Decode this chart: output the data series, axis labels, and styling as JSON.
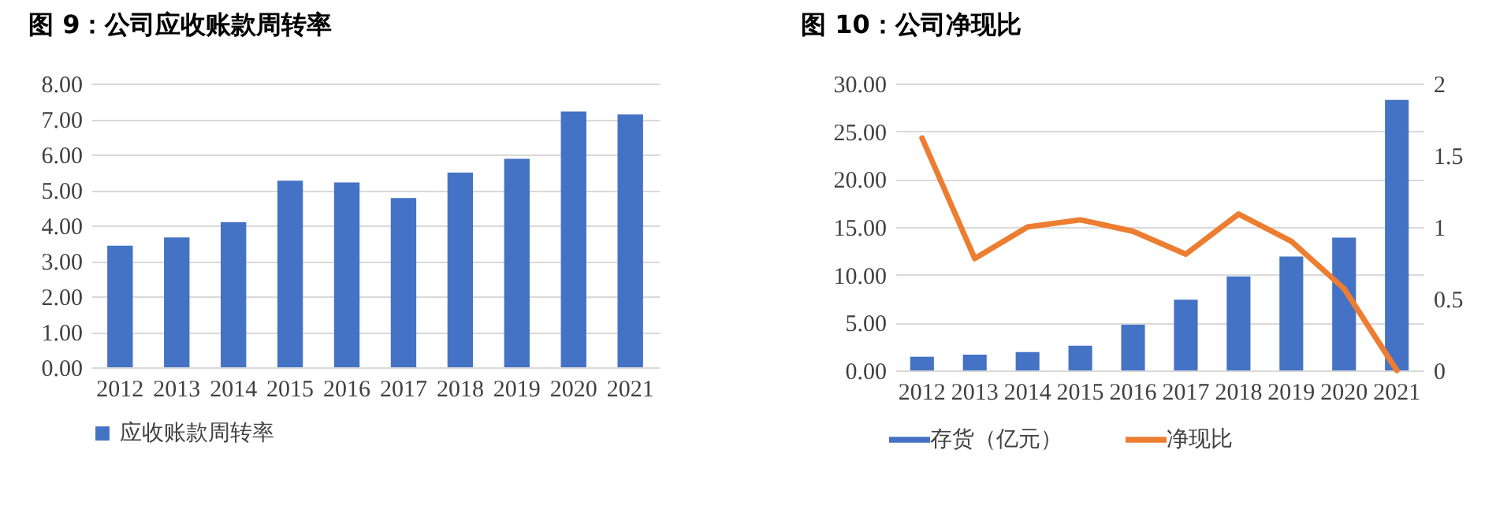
{
  "chart_data": [
    {
      "type": "bar",
      "title": "图 9：公司应收账款周转率",
      "categories": [
        "2012",
        "2013",
        "2014",
        "2015",
        "2016",
        "2017",
        "2018",
        "2019",
        "2020",
        "2021"
      ],
      "series": [
        {
          "name": "应收账款周转率",
          "color": "#4472c4",
          "values": [
            3.43,
            3.66,
            4.09,
            5.26,
            5.21,
            4.77,
            5.49,
            5.88,
            7.21,
            7.13
          ]
        }
      ],
      "ylim": [
        0,
        8
      ],
      "yticks": [
        {
          "value": 0,
          "label": "0.00"
        },
        {
          "value": 1,
          "label": "1.00"
        },
        {
          "value": 2,
          "label": "2.00"
        },
        {
          "value": 3,
          "label": "3.00"
        },
        {
          "value": 4,
          "label": "4.00"
        },
        {
          "value": 5,
          "label": "5.00"
        },
        {
          "value": 6,
          "label": "6.00"
        },
        {
          "value": 7,
          "label": "7.00"
        },
        {
          "value": 8,
          "label": "8.00"
        }
      ],
      "grid": "y",
      "legend": "bottom"
    },
    {
      "type": "bar",
      "title": "图 10：公司净现比",
      "categories": [
        "2012",
        "2013",
        "2014",
        "2015",
        "2016",
        "2017",
        "2018",
        "2019",
        "2020",
        "2021"
      ],
      "series": [
        {
          "name": "存货（亿元）",
          "color": "#4472c4",
          "values": [
            1.43,
            1.65,
            1.92,
            2.58,
            4.77,
            7.4,
            9.82,
            11.9,
            13.88,
            28.3
          ]
        },
        {
          "name": "净现比",
          "type": "line",
          "axis": "y2",
          "color": "#ed7d31",
          "values": [
            1.62,
            0.78,
            1.0,
            1.05,
            0.97,
            0.81,
            1.09,
            0.9,
            0.57,
            0
          ]
        }
      ],
      "ylim": [
        0,
        30
      ],
      "yticks": [
        {
          "value": 0,
          "label": "0.00"
        },
        {
          "value": 5,
          "label": "5.00"
        },
        {
          "value": 10,
          "label": "10.00"
        },
        {
          "value": 15,
          "label": "15.00"
        },
        {
          "value": 20,
          "label": "20.00"
        },
        {
          "value": 25,
          "label": "25.00"
        },
        {
          "value": 30,
          "label": "30.00"
        }
      ],
      "y2lim": [
        0,
        2
      ],
      "y2ticks": [
        0,
        0.5,
        1,
        1.5,
        2
      ],
      "grid": "y",
      "legend": "bottom"
    }
  ]
}
